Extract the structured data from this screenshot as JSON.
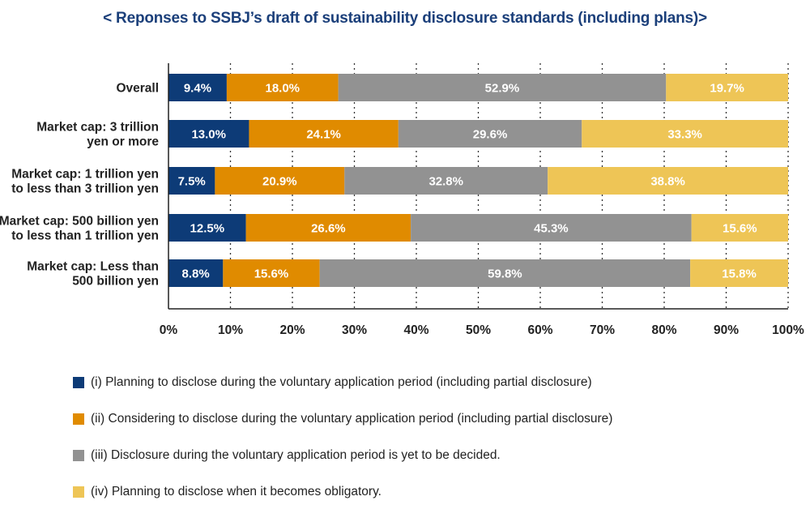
{
  "chart_data": {
    "type": "bar",
    "orientation": "horizontal",
    "stacked": true,
    "title": "< Reponses to SSBJ’s draft of sustainability disclosure standards (including plans)>",
    "xlabel": "",
    "ylabel": "",
    "xlim": [
      0,
      100
    ],
    "grid": true,
    "legend_position": "bottom",
    "categories": [
      [
        "Overall"
      ],
      [
        "Market cap: 3 trillion",
        "yen or more"
      ],
      [
        "Market cap: 1 trillion yen",
        "to less than 3 trillion yen"
      ],
      [
        "Market cap: 500 billion yen",
        "to less than 1 trillion yen"
      ],
      [
        "Market cap: Less than",
        "500 billion yen"
      ]
    ],
    "x_ticks": [
      "0%",
      "10%",
      "20%",
      "30%",
      "40%",
      "50%",
      "60%",
      "70%",
      "80%",
      "90%",
      "100%"
    ],
    "series": [
      {
        "name": "(i) Planning to disclose during the voluntary application period (including partial disclosure)",
        "color": "#0d3b77",
        "values": [
          9.4,
          13.0,
          7.5,
          12.5,
          8.8
        ],
        "labels": [
          "9.4%",
          "13.0%",
          "7.5%",
          "12.5%",
          "8.8%"
        ]
      },
      {
        "name": "(ii) Considering to disclose during the voluntary application period (including partial disclosure)",
        "color": "#e08b00",
        "values": [
          18.0,
          24.1,
          20.9,
          26.6,
          15.6
        ],
        "labels": [
          "18.0%",
          "24.1%",
          "20.9%",
          "26.6%",
          "15.6%"
        ]
      },
      {
        "name": "(iii) Disclosure during the voluntary application period is yet to be decided.",
        "color": "#929292",
        "values": [
          52.9,
          29.6,
          32.8,
          45.3,
          59.8
        ],
        "labels": [
          "52.9%",
          "29.6%",
          "32.8%",
          "45.3%",
          "59.8%"
        ]
      },
      {
        "name": "(iv) Planning to disclose when it becomes obligatory.",
        "color": "#eec556",
        "values": [
          19.7,
          33.3,
          38.8,
          15.6,
          15.8
        ],
        "labels": [
          "19.7%",
          "33.3%",
          "38.8%",
          "15.6%",
          "15.8%"
        ]
      }
    ]
  }
}
